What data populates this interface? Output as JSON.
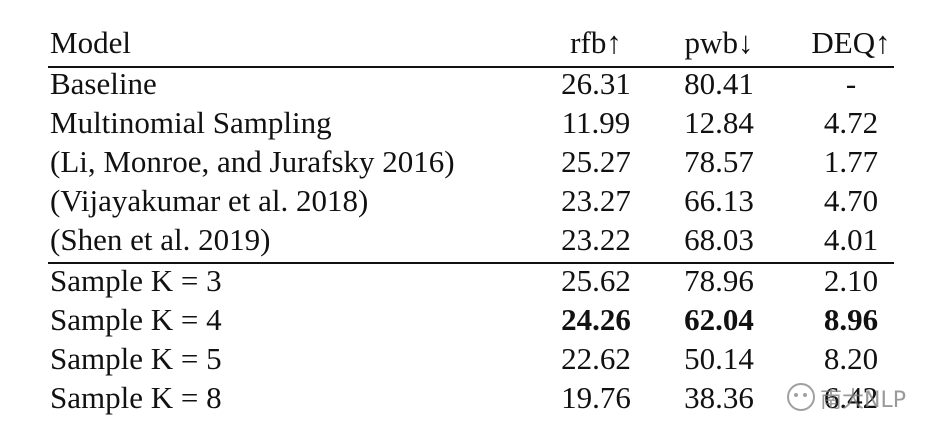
{
  "table": {
    "header": [
      "Model",
      "rfb↑",
      "pwb↓",
      "DEQ↑"
    ],
    "rows": [
      [
        "Baseline",
        "26.31",
        "80.41",
        "-"
      ],
      [
        "Multinomial Sampling",
        "11.99",
        "12.84",
        "4.72"
      ],
      [
        "(Li, Monroe, and Jurafsky 2016)",
        "25.27",
        "78.57",
        "1.77"
      ],
      [
        "(Vijayakumar et al. 2018)",
        "23.27",
        "66.13",
        "4.70"
      ],
      [
        "(Shen et al. 2019)",
        "23.22",
        "68.03",
        "4.01"
      ],
      [
        "Sample K = 3",
        "25.62",
        "78.96",
        "2.10"
      ],
      [
        "Sample K = 4",
        "24.26",
        "62.04",
        "8.96"
      ],
      [
        "Sample K = 5",
        "22.62",
        "50.14",
        "8.20"
      ],
      [
        "Sample K = 8",
        "19.76",
        "38.36",
        "6.42"
      ]
    ],
    "bold_rows": [
      6
    ],
    "rule_after_rows": [
      4
    ]
  },
  "watermark": "南大NLP"
}
